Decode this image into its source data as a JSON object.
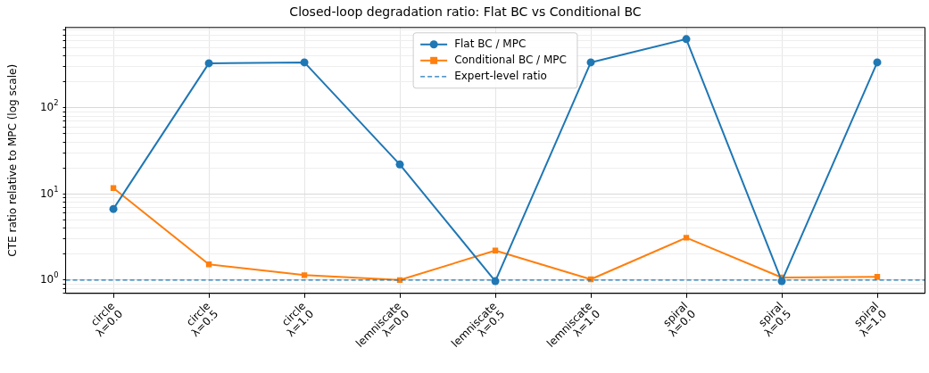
{
  "chart_data": {
    "type": "line",
    "title": "Closed-loop degradation ratio: Flat BC vs Conditional BC",
    "ylabel": "CTE ratio relative to MPC (log scale)",
    "categories": [
      "circle\nλ=0.0",
      "circle\nλ=0.5",
      "circle\nλ=1.0",
      "lemniscate\nλ=0.0",
      "lemniscate\nλ=0.5",
      "lemniscate\nλ=1.0",
      "spiral\nλ=0.0",
      "spiral\nλ=0.5",
      "spiral\nλ=1.0"
    ],
    "series": [
      {
        "name": "Flat BC / MPC",
        "color": "#1f77b4",
        "marker": "circle",
        "values": [
          6.7,
          330,
          338,
          22,
          0.97,
          338,
          630,
          0.97,
          338
        ]
      },
      {
        "name": "Conditional BC / MPC",
        "color": "#ff7f0e",
        "marker": "square",
        "values": [
          11.7,
          1.52,
          1.14,
          1.0,
          2.2,
          1.02,
          3.1,
          1.07,
          1.09
        ]
      }
    ],
    "ref_lines": [
      {
        "axis": "y",
        "value": 1,
        "label": "Expert-level ratio",
        "color": "#1f77b4",
        "line_style": "dashed"
      }
    ],
    "log": "y",
    "ylim": [
      0.7,
      860
    ],
    "yticks": [
      {
        "value": 0.7,
        "label": null
      },
      {
        "value": 0.8,
        "label": null
      },
      {
        "value": 0.9,
        "label": null
      },
      {
        "value": 1,
        "label": "10$^{0}$"
      },
      {
        "value": 2,
        "label": null
      },
      {
        "value": 3,
        "label": null
      },
      {
        "value": 4,
        "label": null
      },
      {
        "value": 5,
        "label": null
      },
      {
        "value": 6,
        "label": null
      },
      {
        "value": 7,
        "label": null
      },
      {
        "value": 8,
        "label": null
      },
      {
        "value": 9,
        "label": null
      },
      {
        "value": 10,
        "label": "10$^{1}$"
      },
      {
        "value": 20,
        "label": null
      },
      {
        "value": 30,
        "label": null
      },
      {
        "value": 40,
        "label": null
      },
      {
        "value": 50,
        "label": null
      },
      {
        "value": 60,
        "label": null
      },
      {
        "value": 70,
        "label": null
      },
      {
        "value": 80,
        "label": null
      },
      {
        "value": 90,
        "label": null
      },
      {
        "value": 100,
        "label": "10$^{2}$"
      },
      {
        "value": 200,
        "label": null
      },
      {
        "value": 300,
        "label": null
      },
      {
        "value": 400,
        "label": null
      },
      {
        "value": 500,
        "label": null
      },
      {
        "value": 600,
        "label": null
      },
      {
        "value": 700,
        "label": null
      },
      {
        "value": 800,
        "label": null
      }
    ],
    "grid": true,
    "legend": "top",
    "line_style": "solid"
  }
}
